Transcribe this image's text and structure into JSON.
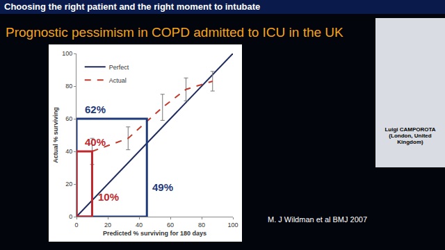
{
  "header": "Choosing the right patient and the right moment to intubate",
  "title": "Prognostic pessimism in COPD admitted to ICU in the UK",
  "citation": "M. J Wildman et al BMJ 2007",
  "speaker": "Luigi CAMPOROTA (London, United Kingdom)",
  "chart_data": {
    "type": "line",
    "xlabel": "Predicted % surviving for 180 days",
    "ylabel": "Actual % surviving",
    "xlim": [
      0,
      100
    ],
    "ylim": [
      0,
      100
    ],
    "xticks": [
      0,
      20,
      40,
      60,
      80,
      100
    ],
    "yticks": [
      0,
      20,
      40,
      60,
      80,
      100
    ],
    "grid": false,
    "legend": "top left",
    "series": [
      {
        "name": "Perfect",
        "color": "#1f2a5c",
        "line_style": "solid",
        "x": [
          0,
          100
        ],
        "values": [
          0,
          100
        ]
      },
      {
        "name": "Actual",
        "color": "#c0392b",
        "line_style": "dashed",
        "x": [
          10,
          33,
          55,
          70,
          87
        ],
        "values": [
          40,
          48,
          67,
          78,
          83
        ],
        "error": [
          8,
          7,
          8,
          7,
          6
        ]
      }
    ],
    "boxes": [
      {
        "x": [
          0,
          45
        ],
        "y": [
          0,
          60
        ],
        "color": "#1f3a7a",
        "top_label": "62%",
        "side_label": "49%"
      },
      {
        "x": [
          0,
          10
        ],
        "y": [
          0,
          40
        ],
        "color": "#c0282d",
        "top_label": "40%",
        "side_label": "10%"
      }
    ]
  }
}
